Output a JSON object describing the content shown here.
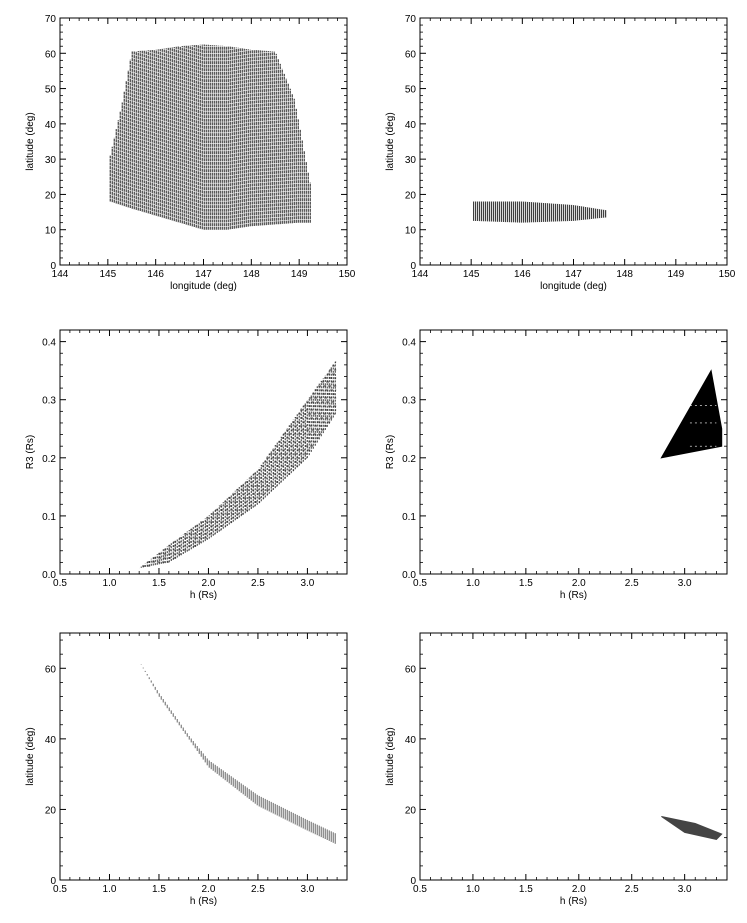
{
  "figure": {
    "rows": 3,
    "cols": 2
  },
  "chart_data": [
    {
      "id": "lonlat-left",
      "type": "scatter",
      "xlabel": "longitude (deg)",
      "ylabel": "latitude (deg)",
      "xlim": [
        144,
        150
      ],
      "ylim": [
        0,
        70
      ],
      "xticks": [
        144,
        145,
        146,
        147,
        148,
        149,
        150
      ],
      "yticks": [
        0,
        10,
        20,
        30,
        40,
        50,
        60,
        70
      ],
      "grid": false,
      "legend": "none",
      "series": [
        {
          "style": "vertical-stripes",
          "x_range": [
            145.05,
            149.25
          ],
          "lower": [
            [
              145.05,
              18
            ],
            [
              145.5,
              16
            ],
            [
              146.0,
              14
            ],
            [
              146.5,
              12
            ],
            [
              147.0,
              10
            ],
            [
              147.5,
              10
            ],
            [
              148.0,
              11
            ],
            [
              148.5,
              11.5
            ],
            [
              149.0,
              12
            ],
            [
              149.25,
              12
            ]
          ],
          "upper": [
            [
              145.05,
              31
            ],
            [
              145.3,
              46
            ],
            [
              145.5,
              60.5
            ],
            [
              146.0,
              61
            ],
            [
              146.5,
              62
            ],
            [
              147.0,
              62.5
            ],
            [
              147.5,
              62
            ],
            [
              148.0,
              61
            ],
            [
              148.5,
              60.5
            ],
            [
              148.9,
              47
            ],
            [
              149.25,
              22
            ]
          ],
          "color": "#000000"
        }
      ]
    },
    {
      "id": "lonlat-right",
      "type": "scatter",
      "xlabel": "longitude (deg)",
      "ylabel": "latitude (deg)",
      "xlim": [
        144,
        150
      ],
      "ylim": [
        0,
        70
      ],
      "xticks": [
        144,
        145,
        146,
        147,
        148,
        149,
        150
      ],
      "yticks": [
        0,
        10,
        20,
        30,
        40,
        50,
        60,
        70
      ],
      "grid": false,
      "legend": "none",
      "series": [
        {
          "style": "vertical-stripes",
          "x_range": [
            145.05,
            147.65
          ],
          "lower": [
            [
              145.05,
              12.5
            ],
            [
              146.0,
              12
            ],
            [
              147.0,
              12.5
            ],
            [
              147.65,
              13.5
            ]
          ],
          "upper": [
            [
              145.05,
              18
            ],
            [
              146.0,
              18
            ],
            [
              147.0,
              17
            ],
            [
              147.65,
              15.5
            ]
          ],
          "color": "#000000"
        }
      ]
    },
    {
      "id": "hR3-left",
      "type": "scatter",
      "xlabel": "h (Rs)",
      "ylabel": "R3 (Rs)",
      "xlim": [
        0.5,
        3.4
      ],
      "ylim": [
        0,
        0.42
      ],
      "xticks": [
        0.5,
        1.0,
        1.5,
        2.0,
        2.5,
        3.0
      ],
      "yticks": [
        0.0,
        0.1,
        0.2,
        0.3,
        0.4
      ],
      "grid": false,
      "legend": "none",
      "series": [
        {
          "style": "hatched-band",
          "x_range": [
            1.3,
            3.3
          ],
          "lower": [
            [
              1.3,
              0.01
            ],
            [
              1.6,
              0.02
            ],
            [
              2.0,
              0.06
            ],
            [
              2.5,
              0.12
            ],
            [
              3.0,
              0.2
            ],
            [
              3.3,
              0.28
            ]
          ],
          "upper": [
            [
              1.3,
              0.01
            ],
            [
              1.6,
              0.05
            ],
            [
              2.0,
              0.1
            ],
            [
              2.5,
              0.18
            ],
            [
              3.0,
              0.3
            ],
            [
              3.3,
              0.37
            ]
          ],
          "color": "#000000"
        }
      ]
    },
    {
      "id": "hR3-right",
      "type": "scatter",
      "xlabel": "h (Rs)",
      "ylabel": "R3 (Rs)",
      "xlim": [
        0.5,
        3.4
      ],
      "ylim": [
        0,
        0.42
      ],
      "xticks": [
        0.5,
        1.0,
        1.5,
        2.0,
        2.5,
        3.0
      ],
      "yticks": [
        0.0,
        0.1,
        0.2,
        0.3,
        0.4
      ],
      "grid": false,
      "legend": "none",
      "series": [
        {
          "style": "filled-region",
          "polygon": [
            [
              2.78,
              0.2
            ],
            [
              3.25,
              0.35
            ],
            [
              3.35,
              0.25
            ],
            [
              3.35,
              0.22
            ]
          ],
          "color": "#000000"
        }
      ]
    },
    {
      "id": "hlat-left",
      "type": "scatter",
      "xlabel": "h (Rs)",
      "ylabel": "latitude (deg)",
      "xlim": [
        0.5,
        3.4
      ],
      "ylim": [
        0,
        70
      ],
      "xticks": [
        0.5,
        1.0,
        1.5,
        2.0,
        2.5,
        3.0
      ],
      "yticks": [
        0,
        20,
        40,
        60
      ],
      "grid": false,
      "legend": "none",
      "series": [
        {
          "style": "vertical-stripes",
          "x_range": [
            1.3,
            3.3
          ],
          "lower": [
            [
              1.3,
              62
            ],
            [
              1.5,
              52
            ],
            [
              1.8,
              40
            ],
            [
              2.0,
              32
            ],
            [
              2.5,
              21
            ],
            [
              3.0,
              14
            ],
            [
              3.3,
              10
            ]
          ],
          "upper": [
            [
              1.3,
              62
            ],
            [
              1.5,
              53
            ],
            [
              1.8,
              41
            ],
            [
              2.0,
              34
            ],
            [
              2.5,
              24
            ],
            [
              3.0,
              17
            ],
            [
              3.3,
              13
            ]
          ],
          "color": "#555555"
        }
      ]
    },
    {
      "id": "hlat-right",
      "type": "scatter",
      "xlabel": "h (Rs)",
      "ylabel": "latitude (deg)",
      "xlim": [
        0.5,
        3.4
      ],
      "ylim": [
        0,
        70
      ],
      "xticks": [
        0.5,
        1.0,
        1.5,
        2.0,
        2.5,
        3.0
      ],
      "yticks": [
        0,
        20,
        40,
        60
      ],
      "grid": false,
      "legend": "none",
      "series": [
        {
          "style": "filled-region",
          "polygon": [
            [
              2.78,
              18
            ],
            [
              3.1,
              16
            ],
            [
              3.35,
              13
            ],
            [
              3.3,
              11.5
            ],
            [
              3.0,
              13.5
            ]
          ],
          "color": "#444444"
        }
      ]
    }
  ]
}
